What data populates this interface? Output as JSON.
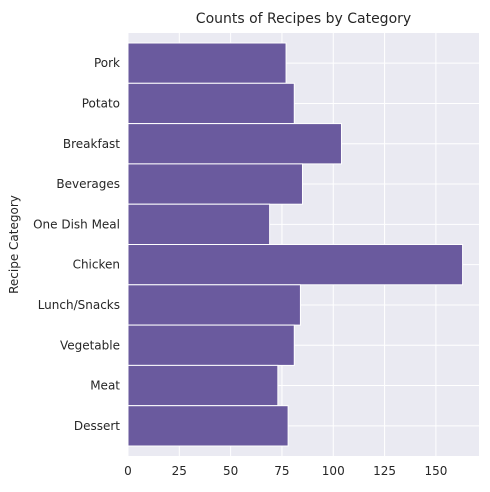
{
  "chart_data": {
    "type": "bar",
    "orientation": "horizontal",
    "title": "Counts of Recipes by Category",
    "xlabel": "",
    "ylabel": "Recipe Category",
    "categories": [
      "Pork",
      "Potato",
      "Breakfast",
      "Beverages",
      "One Dish Meal",
      "Chicken",
      "Lunch/Snacks",
      "Vegetable",
      "Meat",
      "Dessert"
    ],
    "values": [
      77,
      81,
      104,
      85,
      69,
      163,
      84,
      81,
      73,
      78
    ],
    "xlim": [
      0,
      171
    ],
    "xticks": [
      0,
      25,
      50,
      75,
      100,
      125,
      150
    ],
    "grid": true,
    "bar_color": "#6a5a9e",
    "background_color": "#eaeaf2"
  }
}
